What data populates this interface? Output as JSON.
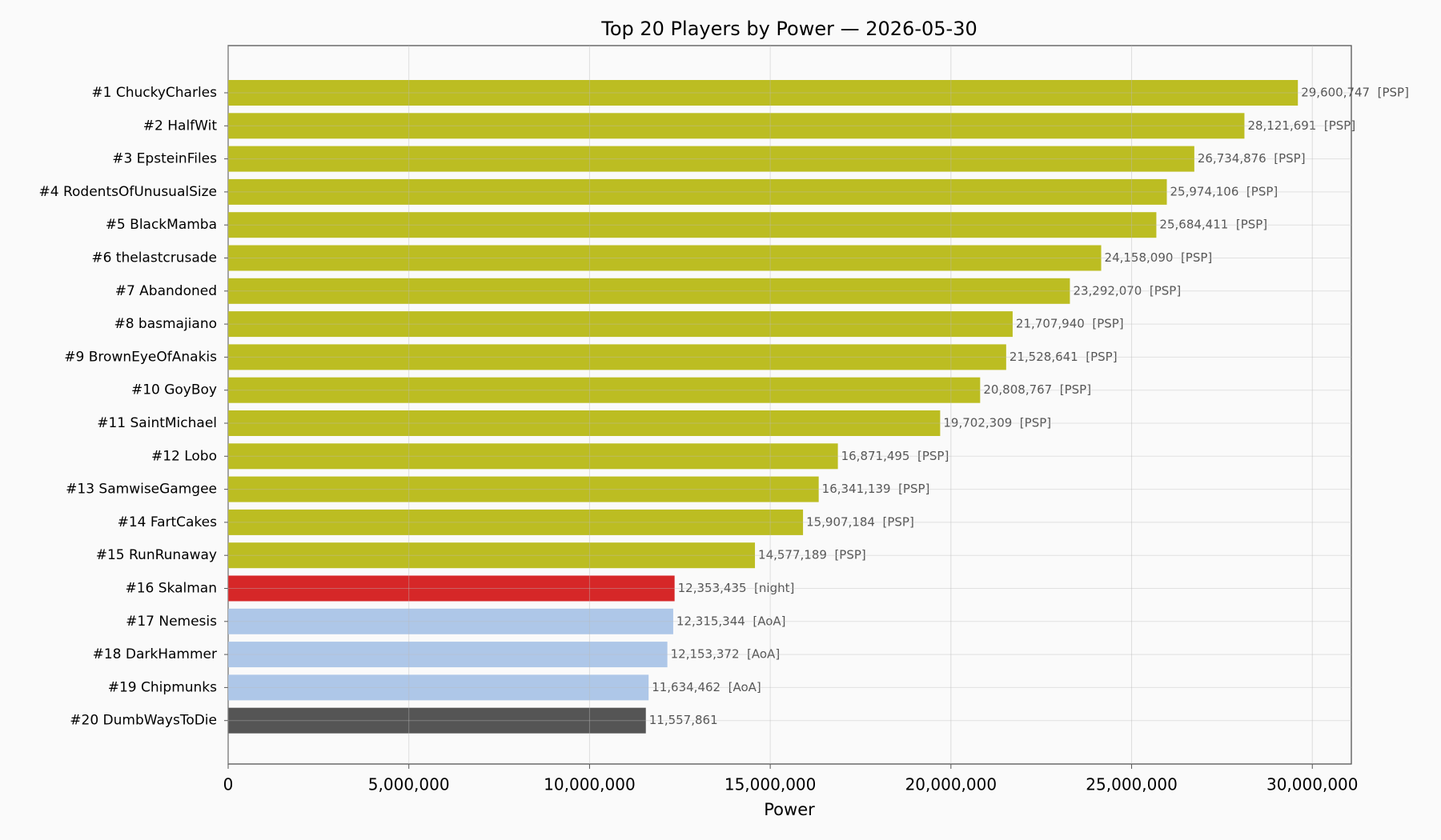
{
  "chart_data": {
    "type": "bar",
    "orientation": "horizontal",
    "title": "Top 20 Players by Power — 2026-05-30",
    "x_label": "Power",
    "categories": [
      "#1 ChuckyCharles",
      "#2 HalfWit",
      "#3 EpsteinFiles",
      "#4 RodentsOfUnusualSize",
      "#5 BlackMamba",
      "#6 thelastcrusade",
      "#7 Abandoned",
      "#8 basmajiano",
      "#9 BrownEyeOfAnakis",
      "#10 GoyBoy",
      "#11 SaintMichael",
      "#12 Lobo",
      "#13 SamwiseGamgee",
      "#14 FartCakes",
      "#15 RunRunaway",
      "#16 Skalman",
      "#17 Nemesis",
      "#18 DarkHammer",
      "#19 Chipmunks",
      "#20 DumbWaysToDie"
    ],
    "values": [
      29600747,
      28121691,
      26734876,
      25974106,
      25684411,
      24158090,
      23292070,
      21707940,
      21528641,
      20808767,
      19702309,
      16871495,
      16341139,
      15907184,
      14577189,
      12353435,
      12315344,
      12153372,
      11634462,
      11557861
    ],
    "value_labels": [
      "29,600,747  [PSP]",
      "28,121,691  [PSP]",
      "26,734,876  [PSP]",
      "25,974,106  [PSP]",
      "25,684,411  [PSP]",
      "24,158,090  [PSP]",
      "23,292,070  [PSP]",
      "21,707,940  [PSP]",
      "21,528,641  [PSP]",
      "20,808,767  [PSP]",
      "19,702,309  [PSP]",
      "16,871,495  [PSP]",
      "16,341,139  [PSP]",
      "15,907,184  [PSP]",
      "14,577,189  [PSP]",
      "12,353,435  [night]",
      "12,315,344  [AoA]",
      "12,153,372  [AoA]",
      "11,634,462  [AoA]",
      "11,557,861"
    ],
    "colors": [
      "#bcbd22",
      "#bcbd22",
      "#bcbd22",
      "#bcbd22",
      "#bcbd22",
      "#bcbd22",
      "#bcbd22",
      "#bcbd22",
      "#bcbd22",
      "#bcbd22",
      "#bcbd22",
      "#bcbd22",
      "#bcbd22",
      "#bcbd22",
      "#bcbd22",
      "#d62728",
      "#aec7e8",
      "#aec7e8",
      "#aec7e8",
      "#555555"
    ],
    "xlim": [
      0,
      31080000
    ],
    "xticks": [
      0,
      {
        "value": 5000000,
        "label": "5,000,000"
      },
      {
        "value": 10000000,
        "label": "10,000,000"
      },
      {
        "value": 15000000,
        "label": "15,000,000"
      },
      {
        "value": 20000000,
        "label": "20,000,000"
      },
      {
        "value": 25000000,
        "label": "25,000,000"
      },
      {
        "value": 30000000,
        "label": "30,000,000"
      }
    ],
    "grid": true
  }
}
